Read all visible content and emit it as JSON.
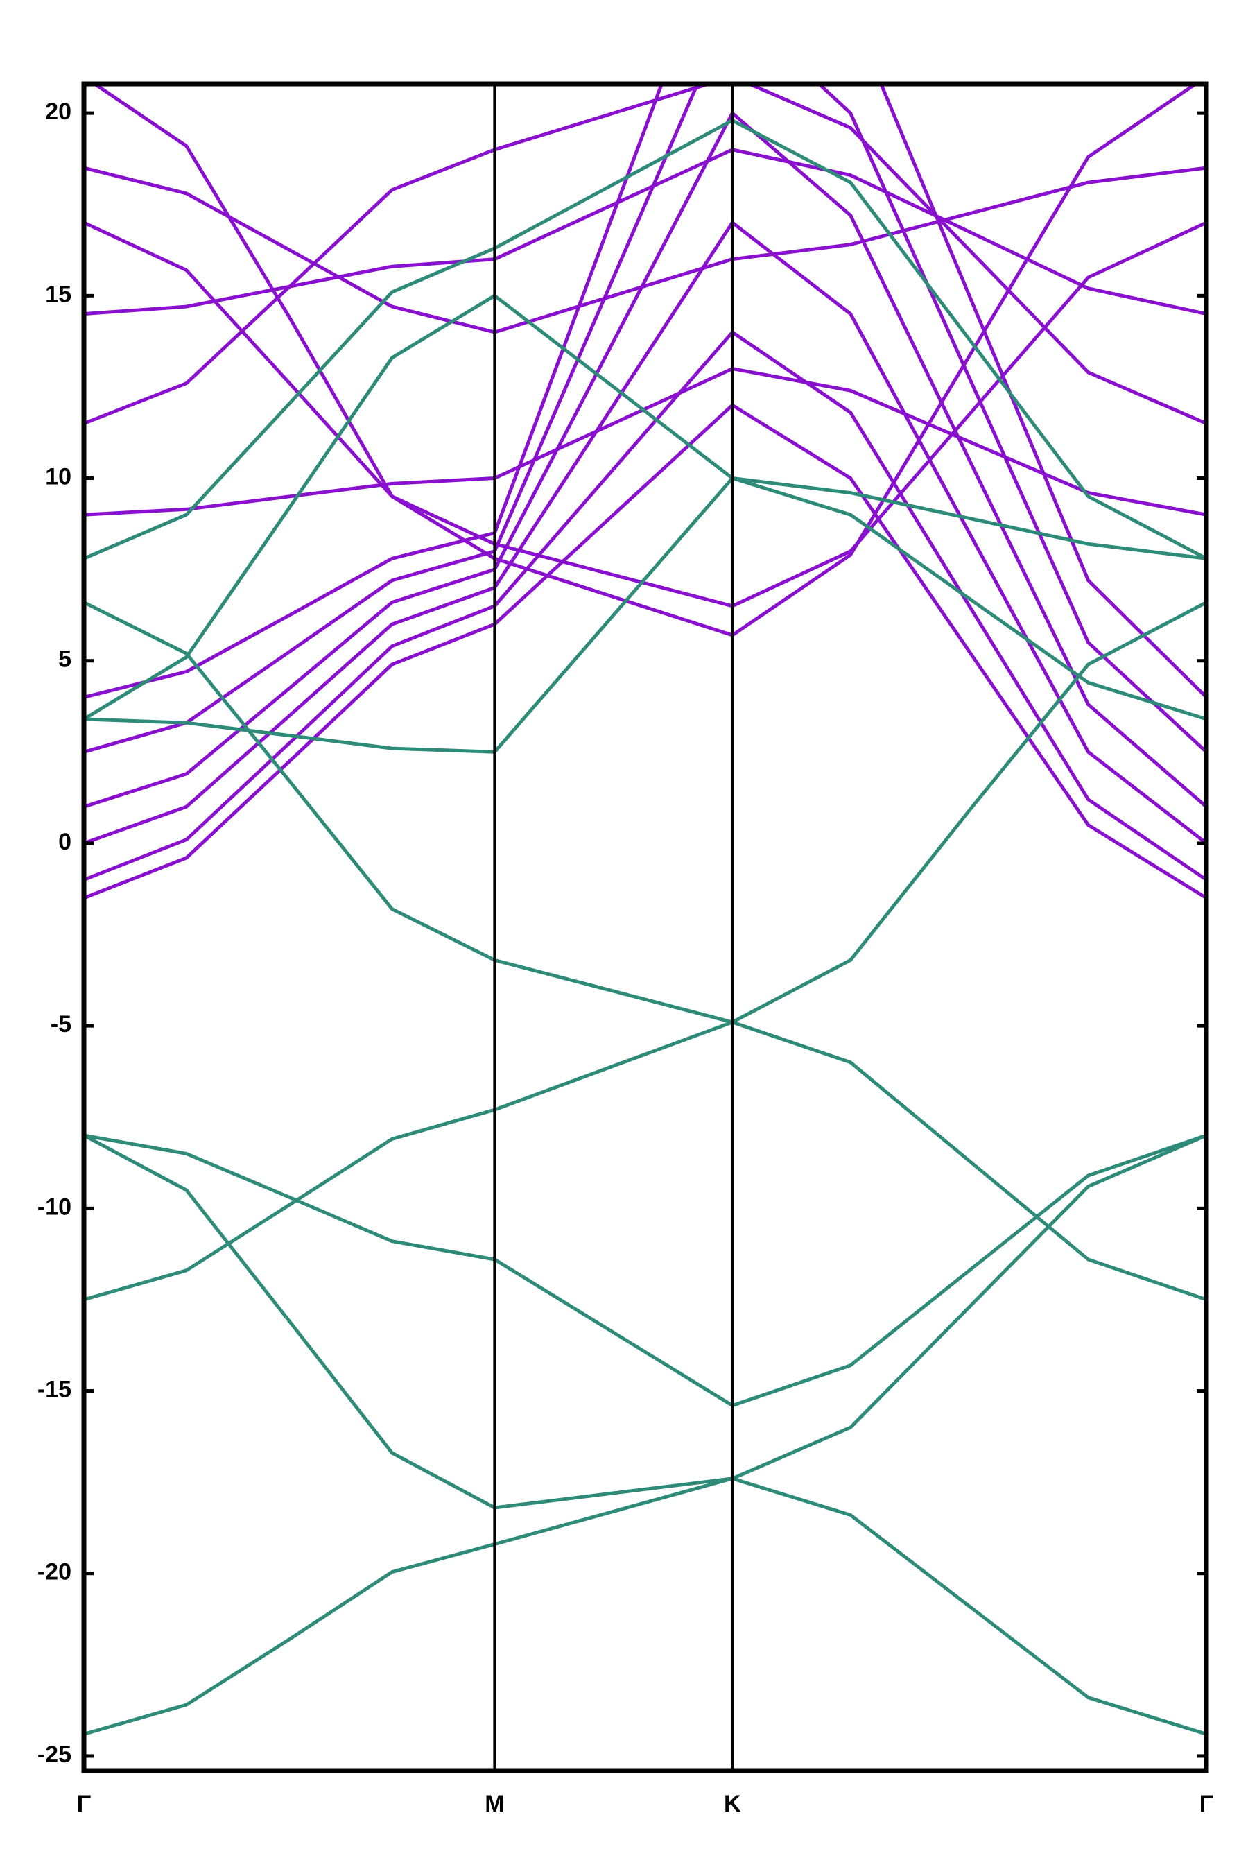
{
  "chart_data": {
    "type": "line",
    "x": [
      0,
      0.144,
      0.289,
      0.433,
      0.577,
      0.744,
      0.911,
      1.077,
      1.244,
      1.411,
      1.577
    ],
    "xlim": [
      0,
      1.577
    ],
    "xticks": [
      {
        "value": 0,
        "label": "Γ"
      },
      {
        "value": 0.577,
        "label": "M"
      },
      {
        "value": 0.911,
        "label": "K"
      },
      {
        "value": 1.577,
        "label": "Γ"
      }
    ],
    "ylim": [
      -25.4,
      20.8
    ],
    "yticks": [
      -25,
      -20,
      -15,
      -10,
      -5,
      0,
      5,
      10,
      15,
      20
    ],
    "grid": false,
    "series": [
      {
        "color": "#8a10d0",
        "values": [
          -1.5,
          -0.4,
          2.25,
          4.9,
          6.0,
          9.0,
          12,
          10.0,
          5.25,
          0.5,
          -1.5
        ]
      },
      {
        "color": "#8a10d0",
        "values": [
          -1.0,
          0.1,
          2.75,
          5.4,
          6.5,
          10.25,
          14,
          11.8,
          6.5,
          1.2,
          -1.0
        ]
      },
      {
        "color": "#8a10d0",
        "values": [
          0,
          1.0,
          3.5,
          6.0,
          7,
          12,
          17,
          14.5,
          8.5,
          2.5,
          0
        ]
      },
      {
        "color": "#8a10d0",
        "values": [
          1,
          1.9,
          4.25,
          6.6,
          7.5,
          13.75,
          20,
          17.2,
          10.5,
          3.8,
          1
        ]
      },
      {
        "color": "#8a10d0",
        "values": [
          2.5,
          3.3,
          5.25,
          7.2,
          8,
          15.5,
          23,
          20,
          12.75,
          5.5,
          2.5
        ]
      },
      {
        "color": "#8a10d0",
        "values": [
          4,
          4.7,
          6.25,
          7.8,
          8.5,
          17.25,
          26,
          22.8,
          15,
          7.2,
          4
        ]
      },
      {
        "color": "#8a10d0",
        "values": [
          21,
          19.1,
          14.4,
          9.5,
          7.8,
          6.75,
          5.7,
          7.9,
          13.35,
          18.8,
          21
        ]
      },
      {
        "color": "#8a10d0",
        "values": [
          17,
          15.7,
          12.6,
          9.5,
          8.2,
          7.35,
          6.5,
          8.0,
          11.75,
          15.5,
          17
        ]
      },
      {
        "color": "#8a10d0",
        "values": [
          18.5,
          17.8,
          16.25,
          14.7,
          14,
          15,
          16,
          16.4,
          17.25,
          18.1,
          18.5
        ]
      },
      {
        "color": "#8a10d0",
        "values": [
          14.5,
          14.7,
          15.25,
          15.8,
          16,
          17.5,
          19,
          18.3,
          16.75,
          15.2,
          14.5
        ]
      },
      {
        "color": "#8a10d0",
        "values": [
          11.5,
          12.6,
          15.25,
          17.9,
          19,
          20,
          21,
          19.6,
          16.25,
          12.9,
          11.5
        ]
      },
      {
        "color": "#8a10d0",
        "values": [
          9,
          9.15,
          9.5,
          9.85,
          10,
          11.5,
          13,
          12.4,
          11,
          9.6,
          9
        ]
      },
      {
        "color": "#2e8b7a",
        "values": [
          -24.4,
          -23.6,
          -21.8,
          -19.96,
          -19.2,
          -18.3,
          -17.4,
          -18.4,
          -20.9,
          -23.4,
          -24.4
        ]
      },
      {
        "color": "#2e8b7a",
        "values": [
          -8.0,
          -9.5,
          -13.1,
          -16.7,
          -18.2,
          -17.8,
          -17.4,
          -16.0,
          -12.7,
          -9.4,
          -8.0
        ]
      },
      {
        "color": "#2e8b7a",
        "values": [
          -8.0,
          -8.5,
          -9.7,
          -10.9,
          -11.4,
          -13.4,
          -15.4,
          -14.3,
          -11.7,
          -9.1,
          -8.0
        ]
      },
      {
        "color": "#2e8b7a",
        "values": [
          -12.5,
          -11.7,
          -9.9,
          -8.1,
          -7.3,
          -6.1,
          -4.9,
          -3.2,
          0.9,
          4.9,
          6.6
        ]
      },
      {
        "color": "#2e8b7a",
        "values": [
          6.6,
          5.2,
          1.7,
          -1.8,
          -3.2,
          -4.05,
          -4.9,
          -6.0,
          -8.7,
          -11.4,
          -12.5
        ]
      },
      {
        "color": "#2e8b7a",
        "values": [
          3.4,
          3.3,
          2.95,
          2.6,
          2.5,
          6.25,
          10.0,
          9.0,
          6.7,
          4.4,
          3.4
        ]
      },
      {
        "color": "#2e8b7a",
        "values": [
          7.8,
          9.0,
          12.05,
          15.1,
          16.3,
          18.05,
          19.8,
          18.1,
          13.8,
          9.5,
          7.8
        ]
      },
      {
        "color": "#2e8b7a",
        "values": [
          3.4,
          5.1,
          9.2,
          13.3,
          15.0,
          12.5,
          10.0,
          9.6,
          8.9,
          8.2,
          7.8
        ]
      }
    ]
  }
}
